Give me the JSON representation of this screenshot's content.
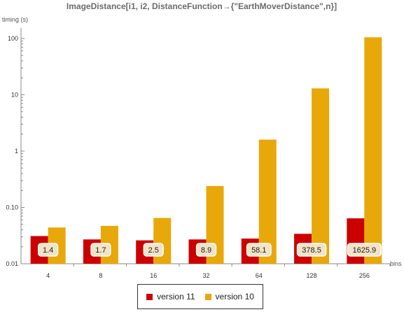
{
  "chart_data": {
    "type": "bar",
    "title": "ImageDistance[i1, i2, DistanceFunction→{\"EarthMoverDistance\",n}]",
    "ylabel": "timing (s)",
    "xlabel": "bins",
    "yscale": "log",
    "ylim": [
      0.01,
      120
    ],
    "yticks": [
      0.01,
      0.1,
      1,
      10,
      100
    ],
    "ytick_labels": [
      "0.01",
      "0.10",
      "1",
      "10",
      "100"
    ],
    "categories": [
      "4",
      "8",
      "16",
      "32",
      "64",
      "128",
      "256"
    ],
    "series": [
      {
        "name": "version 11",
        "color": "#cc0000",
        "values": [
          0.031,
          0.027,
          0.026,
          0.027,
          0.028,
          0.034,
          0.064
        ]
      },
      {
        "name": "version 10",
        "color": "#e8a80a",
        "values": [
          0.044,
          0.047,
          0.065,
          0.24,
          1.6,
          13,
          105
        ]
      }
    ],
    "annotations": [
      "1.4",
      "1.7",
      "2.5",
      "8.9",
      "58.1",
      "378.5",
      "1625.9"
    ],
    "legend_position": "bottom-center",
    "grid": false
  }
}
